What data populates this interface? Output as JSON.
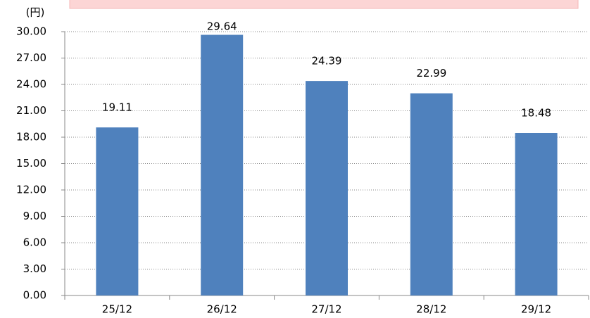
{
  "chart_data": {
    "type": "bar",
    "y_label": "(円)",
    "categories": [
      "25/12",
      "26/12",
      "27/12",
      "28/12",
      "29/12"
    ],
    "values": [
      19.11,
      29.64,
      24.39,
      22.99,
      18.48
    ],
    "color": "#4f81bd",
    "ylim": [
      0,
      30
    ],
    "yticks": [
      {
        "value": 0,
        "label": "0.00"
      },
      {
        "value": 3,
        "label": "3.00"
      },
      {
        "value": 6,
        "label": "6.00"
      },
      {
        "value": 9,
        "label": "9.00"
      },
      {
        "value": 12,
        "label": "12.00"
      },
      {
        "value": 15,
        "label": "15.00"
      },
      {
        "value": 18,
        "label": "18.00"
      },
      {
        "value": 21,
        "label": "21.00"
      },
      {
        "value": 24,
        "label": "24.00"
      },
      {
        "value": 27,
        "label": "27.00"
      },
      {
        "value": 30,
        "label": "30.00"
      }
    ],
    "grid": true
  }
}
